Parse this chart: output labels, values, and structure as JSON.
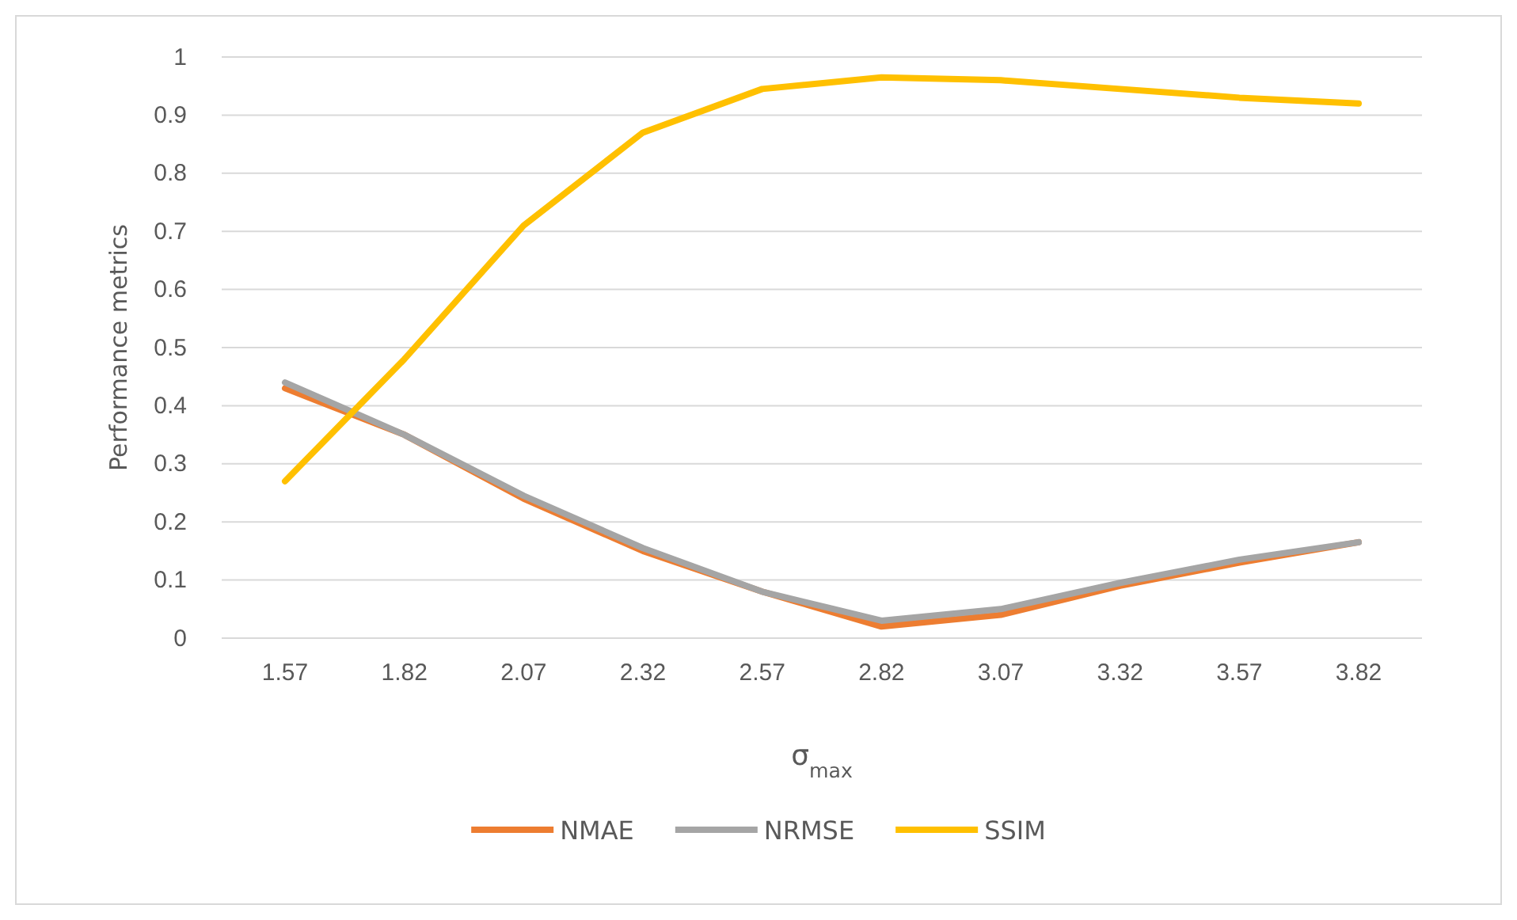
{
  "chart_data": {
    "type": "line",
    "xlabel": "σ$_{max}$",
    "ylabel": "Performance metrics",
    "categories": [
      "1.57",
      "1.82",
      "2.07",
      "2.32",
      "2.57",
      "2.82",
      "3.07",
      "3.32",
      "3.57",
      "3.82"
    ],
    "series": [
      {
        "name": "NMAE",
        "color": "#ed7d31",
        "values": [
          0.43,
          0.35,
          0.24,
          0.15,
          0.08,
          0.02,
          0.04,
          0.09,
          0.13,
          0.165
        ]
      },
      {
        "name": "NRMSE",
        "color": "#a5a5a5",
        "values": [
          0.44,
          0.35,
          0.245,
          0.155,
          0.08,
          0.03,
          0.05,
          0.095,
          0.135,
          0.165
        ]
      },
      {
        "name": "SSIM",
        "color": "#ffc000",
        "values": [
          0.27,
          0.48,
          0.71,
          0.87,
          0.945,
          0.965,
          0.96,
          0.945,
          0.93,
          0.92
        ]
      }
    ],
    "ylim": [
      0,
      1
    ],
    "yticks": [
      0,
      0.1,
      0.2,
      0.3,
      0.4,
      0.5,
      0.6,
      0.7,
      0.8,
      0.9,
      1
    ],
    "grid": "y",
    "legend": "bottom",
    "marker": "none",
    "line_style": "solid"
  }
}
